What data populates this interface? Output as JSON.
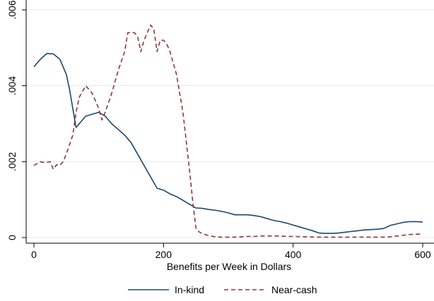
{
  "chart_data": {
    "type": "line",
    "xlabel": "Benefits per Week in Dollars",
    "ylabel": "",
    "xlim": [
      0,
      600
    ],
    "ylim": [
      0,
      0.006
    ],
    "xticks": [
      0,
      200,
      400,
      600
    ],
    "xtick_labels": [
      "0",
      "200",
      "400",
      "600"
    ],
    "yticks": [
      0,
      0.002,
      0.004,
      0.006
    ],
    "ytick_labels": [
      "0",
      ".002",
      ".004",
      ".006"
    ],
    "grid": "horizontal",
    "legend_position": "bottom",
    "series": [
      {
        "name": "In-kind",
        "color": "#1a476f",
        "style": "solid",
        "x": [
          0,
          10,
          20,
          30,
          40,
          50,
          55,
          60,
          65,
          70,
          80,
          90,
          100,
          110,
          120,
          130,
          140,
          150,
          160,
          170,
          180,
          190,
          200,
          210,
          220,
          230,
          240,
          250,
          260,
          270,
          280,
          290,
          300,
          310,
          320,
          330,
          340,
          350,
          360,
          370,
          380,
          390,
          400,
          410,
          420,
          430,
          440,
          450,
          460,
          470,
          480,
          490,
          500,
          510,
          520,
          530,
          540,
          550,
          560,
          570,
          580,
          590,
          600
        ],
        "y": [
          0.0045,
          0.0047,
          0.00485,
          0.00484,
          0.0047,
          0.0043,
          0.0039,
          0.0034,
          0.0029,
          0.003,
          0.0032,
          0.00325,
          0.0033,
          0.0032,
          0.003,
          0.00285,
          0.0027,
          0.0025,
          0.0022,
          0.0019,
          0.0016,
          0.0013,
          0.00125,
          0.00115,
          0.00108,
          0.00098,
          0.00088,
          0.00078,
          0.00077,
          0.00074,
          0.00072,
          0.00069,
          0.00065,
          0.0006,
          0.0006,
          0.0006,
          0.00058,
          0.00055,
          0.0005,
          0.00045,
          0.00042,
          0.00038,
          0.00033,
          0.00028,
          0.00023,
          0.00018,
          0.00012,
          0.00011,
          0.00011,
          0.00012,
          0.00014,
          0.00016,
          0.00018,
          0.0002,
          0.00021,
          0.00022,
          0.00024,
          0.00032,
          0.00036,
          0.0004,
          0.00042,
          0.00042,
          0.00041
        ]
      },
      {
        "name": "Near-cash",
        "color": "#90353b",
        "style": "dashed",
        "x": [
          0,
          10,
          15,
          20,
          25,
          30,
          35,
          40,
          45,
          50,
          60,
          65,
          70,
          80,
          90,
          95,
          100,
          105,
          110,
          120,
          130,
          140,
          145,
          150,
          155,
          160,
          165,
          170,
          175,
          180,
          185,
          190,
          195,
          200,
          205,
          210,
          220,
          230,
          240,
          245,
          250,
          255,
          260,
          270,
          280,
          290,
          300,
          310,
          320,
          330,
          340,
          350,
          360,
          370,
          380,
          390,
          400,
          420,
          440,
          460,
          480,
          500,
          520,
          540,
          550,
          560,
          570,
          580,
          590,
          600
        ],
        "y": [
          0.0019,
          0.002,
          0.00198,
          0.00198,
          0.002,
          0.0018,
          0.00192,
          0.0019,
          0.002,
          0.0022,
          0.0027,
          0.0033,
          0.0037,
          0.004,
          0.0038,
          0.0036,
          0.0034,
          0.0031,
          0.0033,
          0.0038,
          0.0044,
          0.0049,
          0.0054,
          0.0054,
          0.0054,
          0.0053,
          0.0049,
          0.0052,
          0.0054,
          0.0056,
          0.0055,
          0.0049,
          0.0052,
          0.0052,
          0.0051,
          0.0049,
          0.0043,
          0.0033,
          0.0018,
          0.00097,
          0.00025,
          0.00015,
          0.0001,
          5e-05,
          2e-05,
          1e-05,
          1e-05,
          1e-05,
          2e-05,
          3e-05,
          3e-05,
          4e-05,
          4e-05,
          4e-05,
          4e-05,
          3e-05,
          3e-05,
          2e-05,
          1e-05,
          1e-05,
          1e-05,
          1e-05,
          1e-05,
          1e-05,
          2e-05,
          4e-05,
          6e-05,
          8e-05,
          9e-05,
          9e-05
        ]
      }
    ]
  }
}
